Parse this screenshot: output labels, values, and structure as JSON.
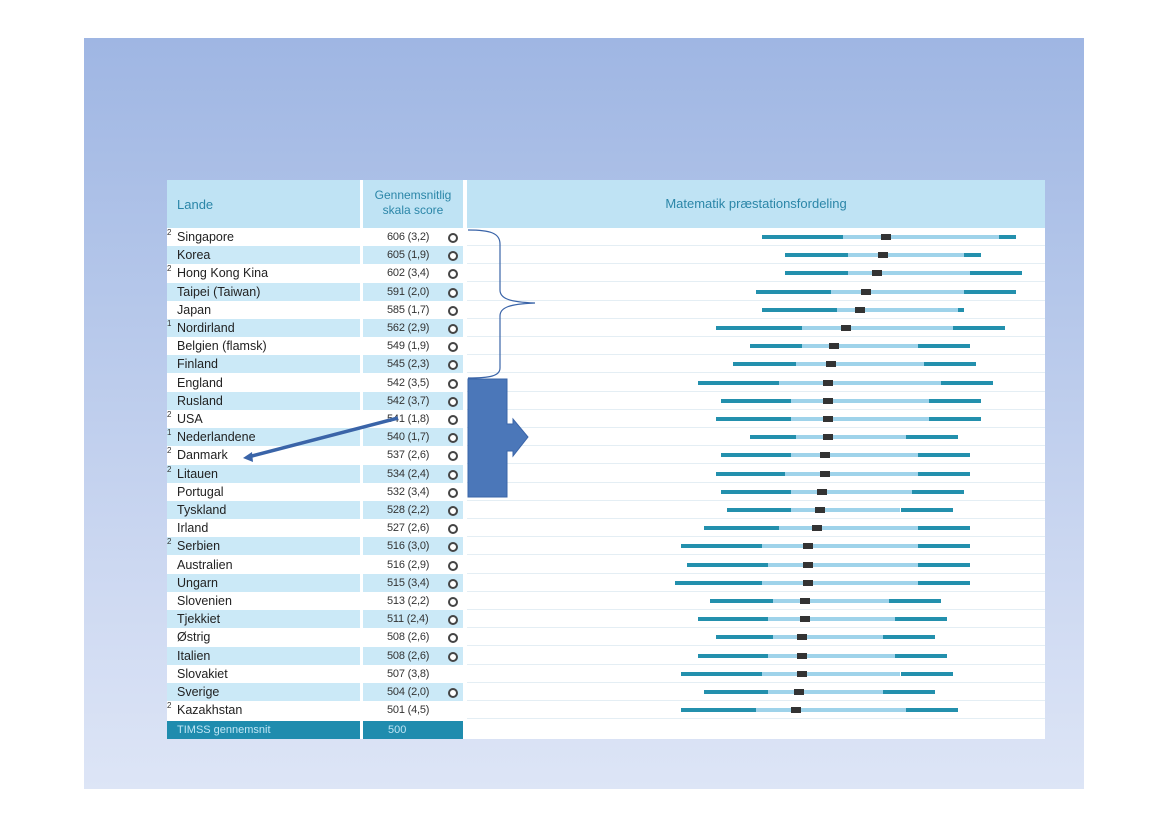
{
  "header": {
    "lande": "Lande",
    "score_line1": "Gennemsnitlig",
    "score_line2": "skala score",
    "distribution": "Matematik præstationsfordeling"
  },
  "rows": [
    {
      "sup": "2",
      "name": "Singapore",
      "score": "606 (3,2)",
      "sig": true
    },
    {
      "sup": "",
      "name": "Korea",
      "score": "605 (1,9)",
      "sig": true
    },
    {
      "sup": "2",
      "name": "Hong Kong Kina",
      "score": "602 (3,4)",
      "sig": true
    },
    {
      "sup": "",
      "name": "Taipei (Taiwan)",
      "score": "591 (2,0)",
      "sig": true
    },
    {
      "sup": "",
      "name": "Japan",
      "score": "585 (1,7)",
      "sig": true
    },
    {
      "sup": "1",
      "name": "Nordirland",
      "score": "562 (2,9)",
      "sig": true
    },
    {
      "sup": "",
      "name": "Belgien (flamsk)",
      "score": "549 (1,9)",
      "sig": true
    },
    {
      "sup": "",
      "name": "Finland",
      "score": "545 (2,3)",
      "sig": true
    },
    {
      "sup": "",
      "name": "England",
      "score": "542 (3,5)",
      "sig": true
    },
    {
      "sup": "",
      "name": "Rusland",
      "score": "542 (3,7)",
      "sig": true
    },
    {
      "sup": "2",
      "name": "USA",
      "score": "541 (1,8)",
      "sig": true
    },
    {
      "sup": "1",
      "name": "Nederlandene",
      "score": "540 (1,7)",
      "sig": true
    },
    {
      "sup": "2",
      "name": "Danmark",
      "score": "537 (2,6)",
      "sig": true
    },
    {
      "sup": "2",
      "name": "Litauen",
      "score": "534 (2,4)",
      "sig": true
    },
    {
      "sup": "",
      "name": "Portugal",
      "score": "532 (3,4)",
      "sig": true
    },
    {
      "sup": "",
      "name": "Tyskland",
      "score": "528 (2,2)",
      "sig": true
    },
    {
      "sup": "",
      "name": "Irland",
      "score": "527 (2,6)",
      "sig": true
    },
    {
      "sup": "2",
      "name": "Serbien",
      "score": "516 (3,0)",
      "sig": true
    },
    {
      "sup": "",
      "name": "Australien",
      "score": "516 (2,9)",
      "sig": true
    },
    {
      "sup": "",
      "name": "Ungarn",
      "score": "515 (3,4)",
      "sig": true
    },
    {
      "sup": "",
      "name": "Slovenien",
      "score": "513 (2,2)",
      "sig": true
    },
    {
      "sup": "",
      "name": "Tjekkiet",
      "score": "511 (2,4)",
      "sig": true
    },
    {
      "sup": "",
      "name": "Østrig",
      "score": "508 (2,6)",
      "sig": true
    },
    {
      "sup": "",
      "name": "Italien",
      "score": "508 (2,6)",
      "sig": true
    },
    {
      "sup": "",
      "name": "Slovakiet",
      "score": "507 (3,8)",
      "sig": false
    },
    {
      "sup": "",
      "name": "Sverige",
      "score": "504 (2,0)",
      "sig": true
    },
    {
      "sup": "2",
      "name": "Kazakhstan",
      "score": "501 (4,5)",
      "sig": false
    }
  ],
  "footer": {
    "label": "TIMSS gennemsnit",
    "value": "500"
  },
  "distributions": [
    {
      "p5": 0.51,
      "p25": 0.65,
      "lo": 0.81,
      "hi": 0.92,
      "p95": 0.95,
      "mean": 0.725
    },
    {
      "p5": 0.55,
      "p25": 0.66,
      "lo": 0.77,
      "hi": 0.86,
      "p95": 0.89,
      "mean": 0.72
    },
    {
      "p5": 0.55,
      "p25": 0.66,
      "lo": 0.76,
      "hi": 0.87,
      "p95": 0.87,
      "mean": 0.71
    },
    {
      "p5": 0.5,
      "p25": 0.63,
      "lo": 0.73,
      "hi": 0.86,
      "p95": 0.86,
      "mean": 0.69
    },
    {
      "p5": 0.51,
      "p25": 0.64,
      "lo": 0.73,
      "hi": 0.85,
      "p95": 0.86,
      "mean": 0.68
    },
    {
      "p5": 0.43,
      "p25": 0.58,
      "lo": 0.69,
      "hi": 0.84,
      "p95": 0.84,
      "mean": 0.655
    },
    {
      "p5": 0.49,
      "p25": 0.58,
      "lo": 0.65,
      "hi": 0.78,
      "p95": 0.78,
      "mean": 0.635
    },
    {
      "p5": 0.46,
      "p25": 0.57,
      "lo": 0.66,
      "hi": 0.79,
      "p95": 0.79,
      "mean": 0.63
    },
    {
      "p5": 0.4,
      "p25": 0.54,
      "lo": 0.68,
      "hi": 0.82,
      "p95": 0.82,
      "mean": 0.625
    },
    {
      "p5": 0.44,
      "p25": 0.56,
      "lo": 0.67,
      "hi": 0.8,
      "p95": 0.8,
      "mean": 0.625
    },
    {
      "p5": 0.43,
      "p25": 0.56,
      "lo": 0.68,
      "hi": 0.8,
      "p95": 0.8,
      "mean": 0.625
    },
    {
      "p5": 0.49,
      "p25": 0.57,
      "lo": 0.68,
      "hi": 0.76,
      "p95": 0.76,
      "mean": 0.625
    },
    {
      "p5": 0.44,
      "p25": 0.56,
      "lo": 0.68,
      "hi": 0.78,
      "p95": 0.78,
      "mean": 0.62
    },
    {
      "p5": 0.43,
      "p25": 0.55,
      "lo": 0.67,
      "hi": 0.78,
      "p95": 0.78,
      "mean": 0.62
    },
    {
      "p5": 0.44,
      "p25": 0.56,
      "lo": 0.66,
      "hi": 0.77,
      "p95": 0.77,
      "mean": 0.615
    },
    {
      "p5": 0.45,
      "p25": 0.56,
      "lo": 0.66,
      "hi": 0.75,
      "p95": 0.75,
      "mean": 0.61
    },
    {
      "p5": 0.41,
      "p25": 0.54,
      "lo": 0.66,
      "hi": 0.78,
      "p95": 0.78,
      "mean": 0.605
    },
    {
      "p5": 0.37,
      "p25": 0.51,
      "lo": 0.65,
      "hi": 0.78,
      "p95": 0.78,
      "mean": 0.59
    },
    {
      "p5": 0.38,
      "p25": 0.52,
      "lo": 0.64,
      "hi": 0.78,
      "p95": 0.78,
      "mean": 0.59
    },
    {
      "p5": 0.36,
      "p25": 0.51,
      "lo": 0.64,
      "hi": 0.78,
      "p95": 0.78,
      "mean": 0.59
    },
    {
      "p5": 0.42,
      "p25": 0.53,
      "lo": 0.64,
      "hi": 0.73,
      "p95": 0.73,
      "mean": 0.585
    },
    {
      "p5": 0.4,
      "p25": 0.52,
      "lo": 0.64,
      "hi": 0.74,
      "p95": 0.74,
      "mean": 0.585
    },
    {
      "p5": 0.43,
      "p25": 0.53,
      "lo": 0.64,
      "hi": 0.72,
      "p95": 0.72,
      "mean": 0.58
    },
    {
      "p5": 0.4,
      "p25": 0.52,
      "lo": 0.64,
      "hi": 0.74,
      "p95": 0.74,
      "mean": 0.58
    },
    {
      "p5": 0.37,
      "p25": 0.51,
      "lo": 0.64,
      "hi": 0.75,
      "p95": 0.75,
      "mean": 0.58
    },
    {
      "p5": 0.41,
      "p25": 0.52,
      "lo": 0.64,
      "hi": 0.72,
      "p95": 0.72,
      "mean": 0.575
    },
    {
      "p5": 0.37,
      "p25": 0.5,
      "lo": 0.64,
      "hi": 0.76,
      "p95": 0.76,
      "mean": 0.57
    }
  ]
}
